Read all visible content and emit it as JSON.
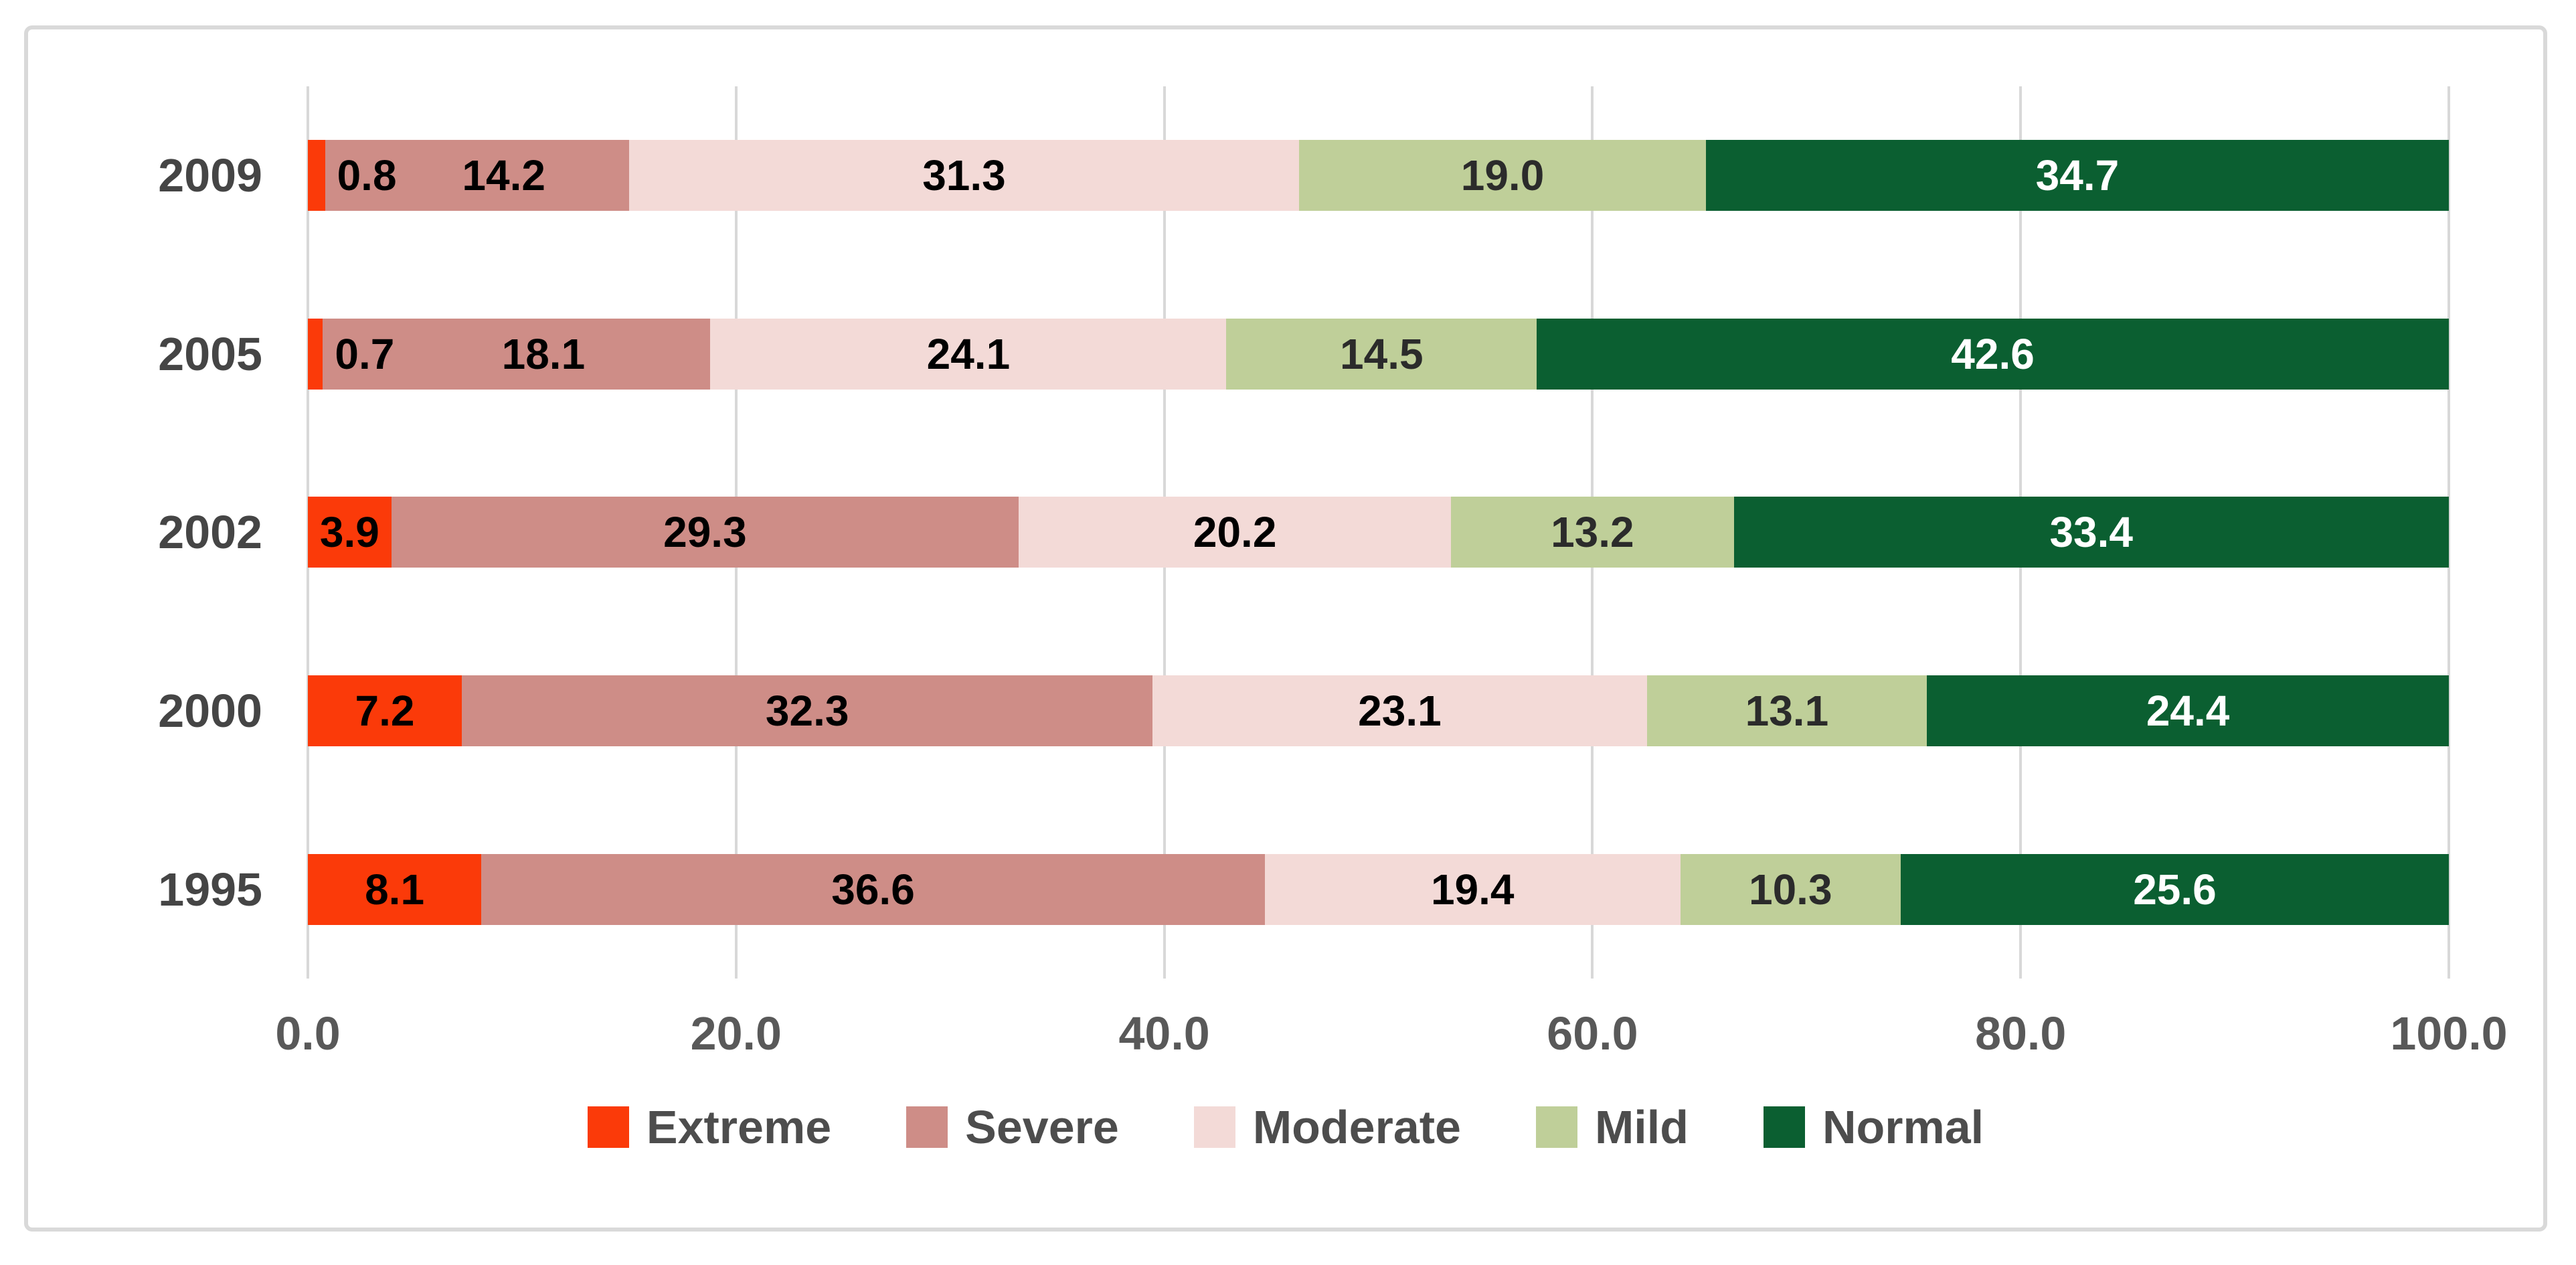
{
  "chart_data": {
    "type": "bar",
    "orientation": "horizontal-stacked",
    "title": "",
    "xlabel": "",
    "ylabel": "",
    "categories": [
      "2009",
      "2005",
      "2002",
      "2000",
      "1995"
    ],
    "series": [
      {
        "name": "Extreme",
        "color": "#fb3a09",
        "label_color": "#000000",
        "values": [
          0.8,
          0.7,
          3.9,
          7.2,
          8.1
        ]
      },
      {
        "name": "Severe",
        "color": "#ce8d87",
        "label_color": "#000000",
        "values": [
          14.2,
          18.1,
          29.3,
          32.3,
          36.6
        ]
      },
      {
        "name": "Moderate",
        "color": "#f3dad7",
        "label_color": "#000000",
        "values": [
          31.3,
          24.1,
          20.2,
          23.1,
          19.4
        ]
      },
      {
        "name": "Mild",
        "color": "#bfcf99",
        "label_color": "#2b2b2b",
        "values": [
          19.0,
          14.5,
          13.2,
          13.1,
          10.3
        ]
      },
      {
        "name": "Normal",
        "color": "#0b5f31",
        "label_color": "#ffffff",
        "values": [
          34.7,
          42.6,
          33.4,
          24.4,
          25.6
        ]
      }
    ],
    "x_ticks": [
      "0.0",
      "20.0",
      "40.0",
      "60.0",
      "80.0",
      "100.0"
    ],
    "xlim": [
      0,
      100
    ],
    "value_format_decimals": 1,
    "legend_position": "bottom",
    "gridlines": "vertical"
  },
  "colors": {
    "frame_border": "#d9d9d9",
    "gridline": "#d8d8d8",
    "year_label_text": "#454545",
    "axis_tick_text": "#595959",
    "legend_text": "#4d4d4d",
    "background": "#ffffff"
  }
}
